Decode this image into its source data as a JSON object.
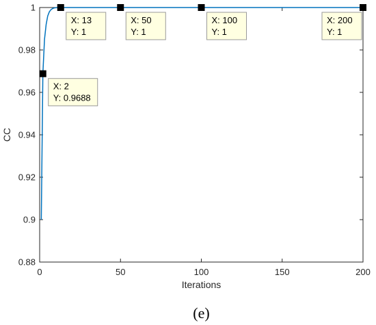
{
  "chart_data": {
    "type": "line",
    "xlabel": "Iterations",
    "ylabel": "CC",
    "xlim": [
      0,
      200
    ],
    "ylim": [
      0.88,
      1.0
    ],
    "xticks": [
      "0",
      "50",
      "100",
      "150",
      "200"
    ],
    "yticks": [
      "0.88",
      "0.9",
      "0.92",
      "0.94",
      "0.96",
      "0.98",
      "1"
    ],
    "grid": false,
    "line_color": "#0072BD",
    "x": [
      1,
      2,
      3,
      4,
      5,
      6,
      7,
      8,
      9,
      10,
      11,
      12,
      13,
      20,
      50,
      100,
      150,
      200
    ],
    "y": [
      0.9,
      0.9688,
      0.985,
      0.992,
      0.996,
      0.998,
      0.999,
      0.9995,
      0.9998,
      0.9999,
      1.0,
      1.0,
      1.0,
      1.0,
      1.0,
      1.0,
      1.0,
      1.0
    ],
    "datatips": [
      {
        "x": 2,
        "y": 0.9688,
        "x_text": "X: 2",
        "y_text": "Y: 0.9688"
      },
      {
        "x": 13,
        "y": 1,
        "x_text": "X: 13",
        "y_text": "Y: 1"
      },
      {
        "x": 50,
        "y": 1,
        "x_text": "X: 50",
        "y_text": "Y: 1"
      },
      {
        "x": 100,
        "y": 1,
        "x_text": "X: 100",
        "y_text": "Y: 1"
      },
      {
        "x": 200,
        "y": 1,
        "x_text": "X: 200",
        "y_text": "Y: 1"
      }
    ]
  },
  "panel_label": "(e)"
}
